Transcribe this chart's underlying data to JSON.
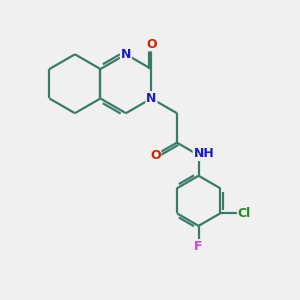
{
  "background_color": "#f0f0f0",
  "bond_color": "#3a7a6a",
  "atom_colors": {
    "N": "#1a1acc",
    "O": "#cc2200",
    "Cl": "#228822",
    "F": "#cc44cc",
    "H": "#888888",
    "C": "#000000"
  },
  "figsize": [
    3.0,
    3.0
  ],
  "dpi": 100
}
